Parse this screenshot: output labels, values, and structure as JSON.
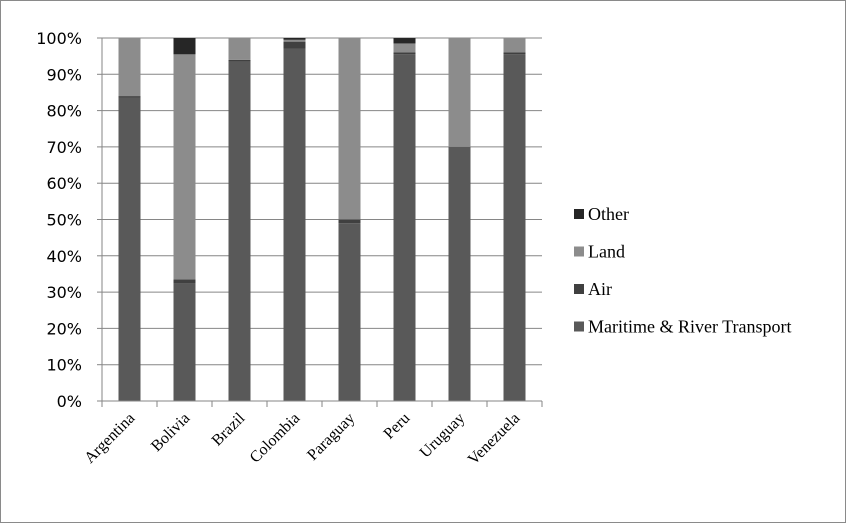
{
  "chart_data": {
    "type": "bar",
    "stacked": true,
    "title": "",
    "xlabel": "",
    "ylabel": "",
    "ylim": [
      0,
      100
    ],
    "y_ticks": [
      "0%",
      "10%",
      "20%",
      "30%",
      "40%",
      "50%",
      "60%",
      "70%",
      "80%",
      "90%",
      "100%"
    ],
    "grid": true,
    "legend_position": "right",
    "categories": [
      "Argentina",
      "Bolivia",
      "Brazil",
      "Colombia",
      "Paraguay",
      "Peru",
      "Uruguay",
      "Venezuela"
    ],
    "series": [
      {
        "name": "Maritime & River Transport",
        "color": "#595959",
        "values": [
          83.5,
          32.5,
          93.5,
          97.0,
          49.0,
          95.5,
          70.0,
          95.5
        ]
      },
      {
        "name": "Air",
        "color": "#404040",
        "values": [
          0.5,
          1.0,
          0.5,
          2.0,
          1.0,
          0.5,
          0.0,
          0.5
        ]
      },
      {
        "name": "Land",
        "color": "#8c8c8c",
        "values": [
          16.0,
          62.0,
          6.0,
          0.5,
          50.0,
          2.5,
          30.0,
          4.0
        ]
      },
      {
        "name": "Other",
        "color": "#262626",
        "values": [
          0.0,
          4.5,
          0.0,
          0.5,
          0.0,
          1.5,
          0.0,
          0.0
        ]
      }
    ],
    "legend_order": [
      "Other",
      "Land",
      "Air",
      "Maritime & River Transport"
    ]
  }
}
